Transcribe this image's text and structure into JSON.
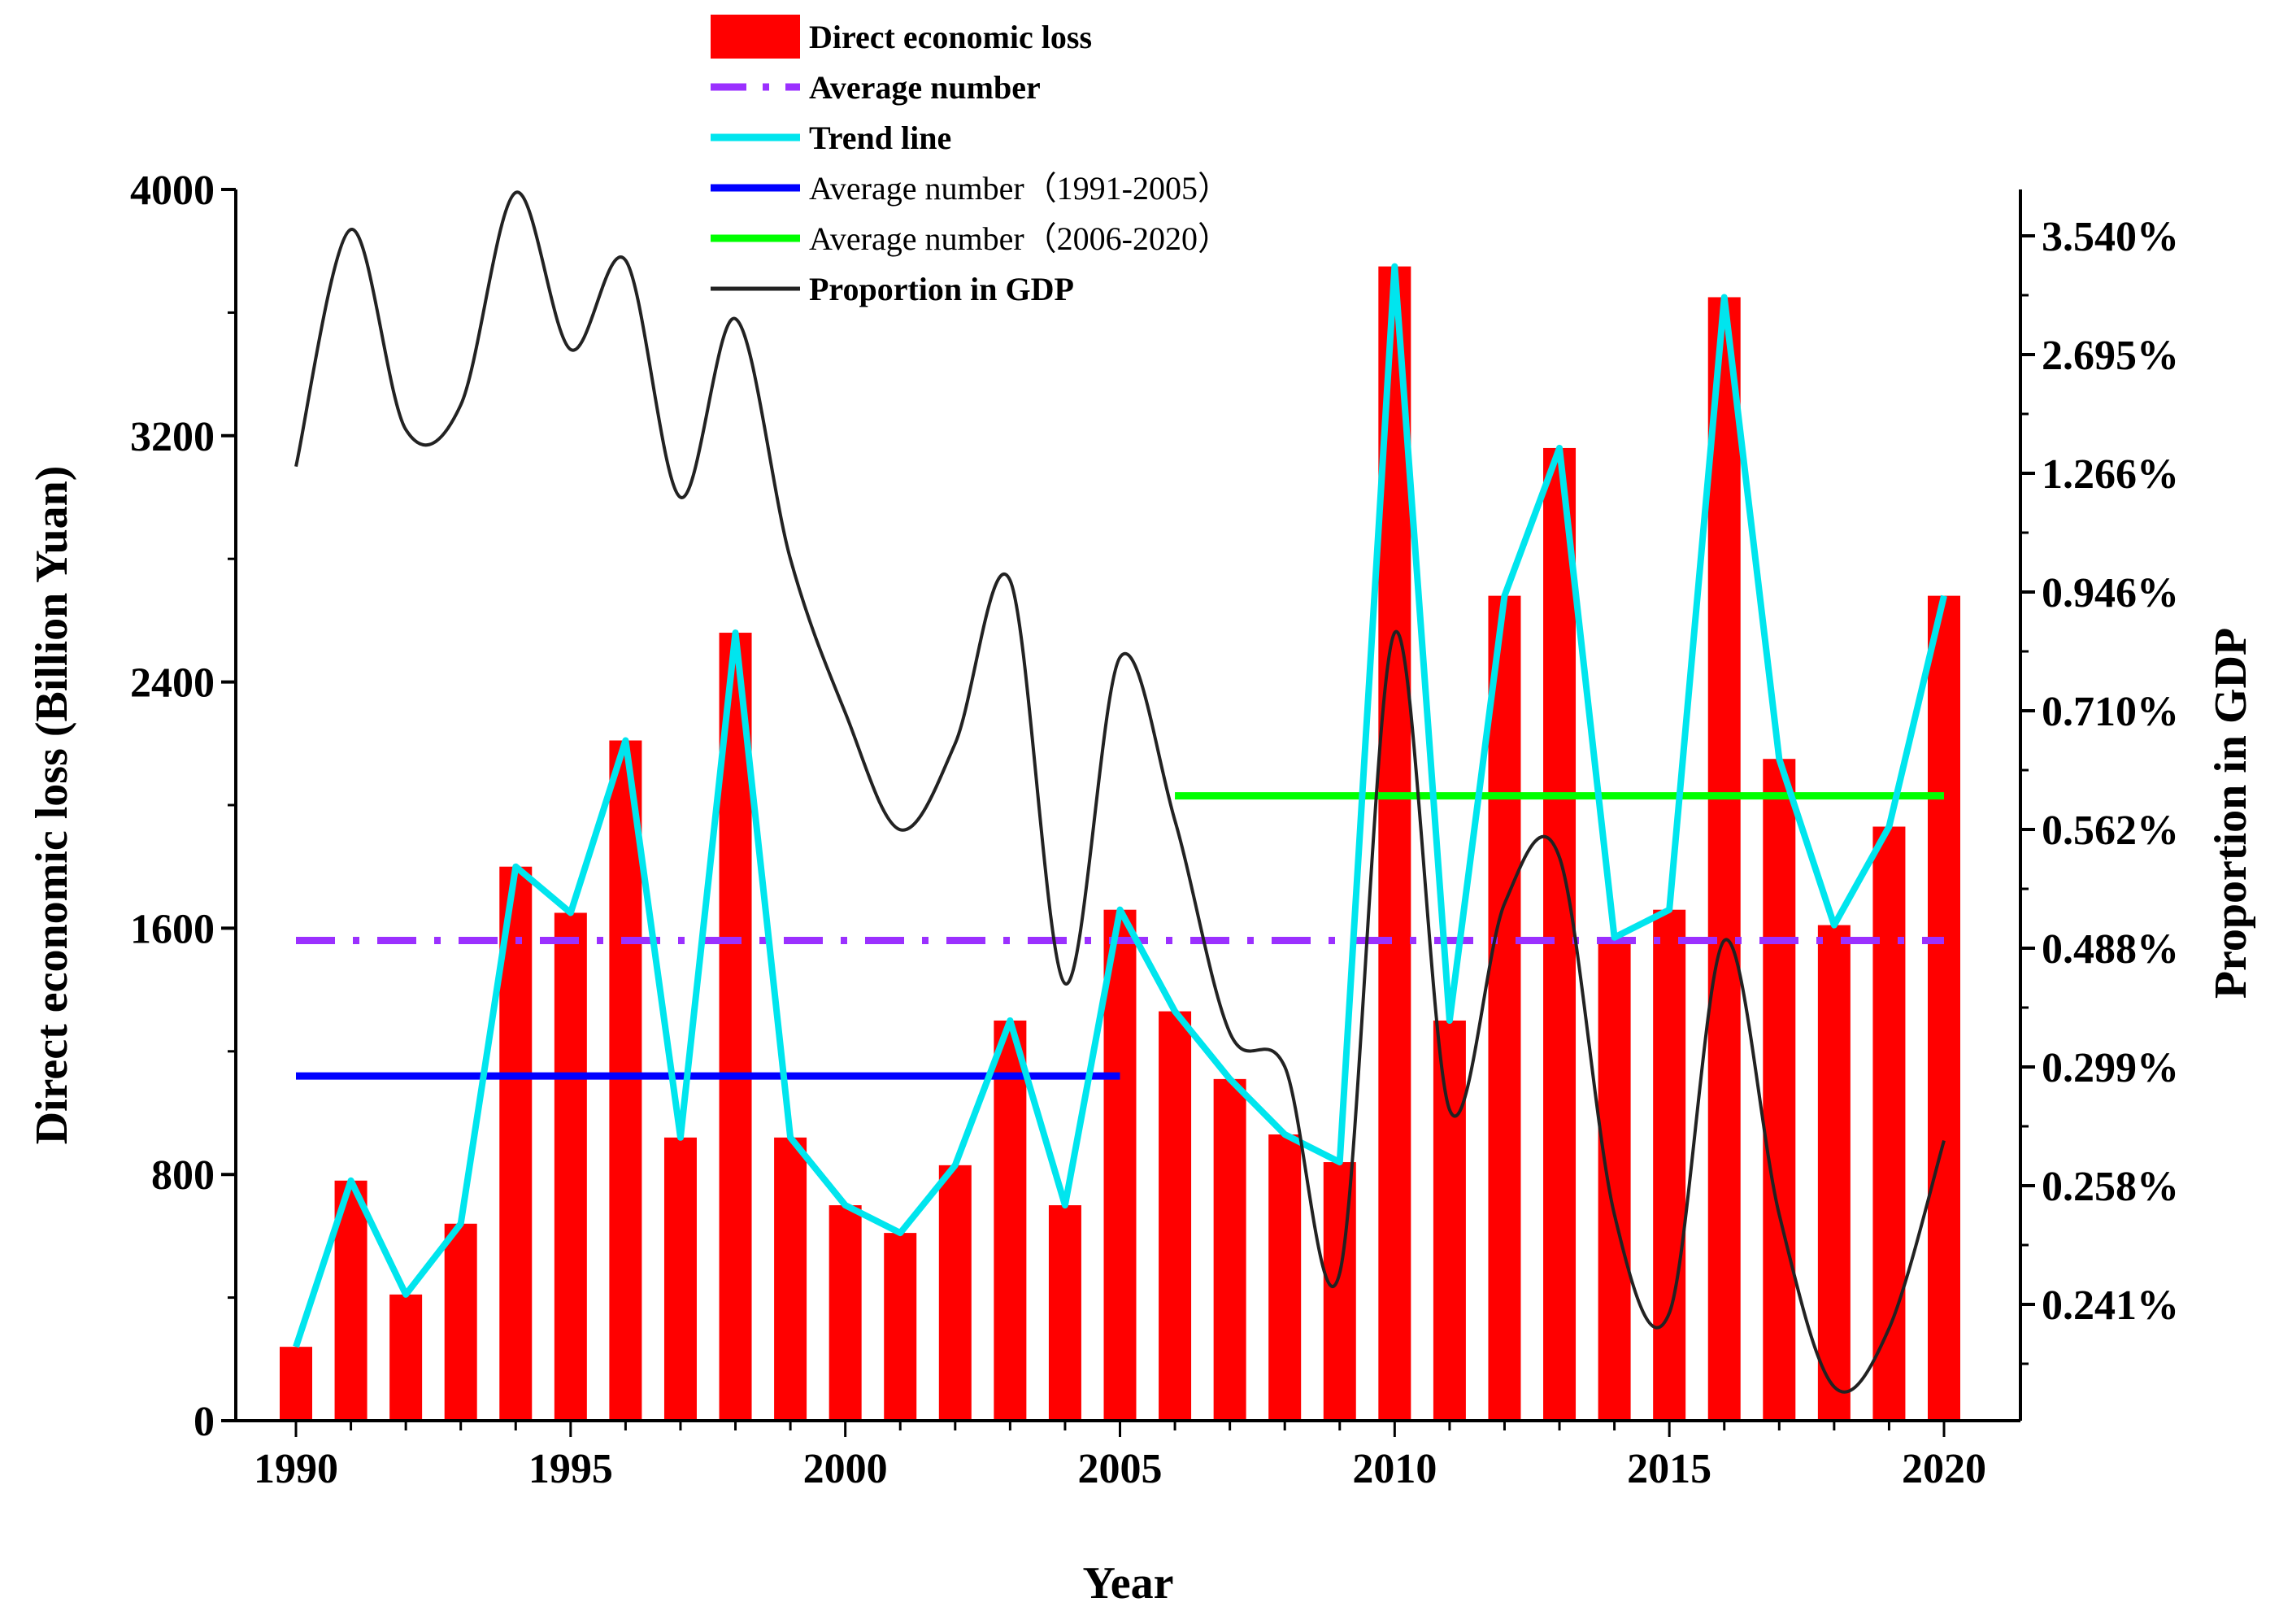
{
  "chart_data": {
    "type": "bar",
    "xlabel": "Year",
    "ylabel": "Direct economic loss (Billion Yuan)",
    "y2label": "Proportion in GDP",
    "xlim": [
      1990,
      2020
    ],
    "ylim": [
      0,
      4000
    ],
    "x_ticks": [
      "1990",
      "1995",
      "2000",
      "2005",
      "2010",
      "2015",
      "2020"
    ],
    "y_ticks": [
      "0",
      "800",
      "1600",
      "2400",
      "3200",
      "4000"
    ],
    "y2_ticks": [
      "0.241%",
      "0.258%",
      "0.299%",
      "0.488%",
      "0.562%",
      "0.710%",
      "0.946%",
      "1.266%",
      "2.695%",
      "3.540%"
    ],
    "grid": false,
    "legend_position": "top-center",
    "legend": [
      {
        "label": "Direct economic loss",
        "style": "bar",
        "color": "#ff0000"
      },
      {
        "label": "Average number",
        "style": "dash-dot",
        "color": "#9b30ff"
      },
      {
        "label": "Trend line",
        "style": "line",
        "color": "#00e5ee"
      },
      {
        "label": "Average number（1991-2005）",
        "style": "line",
        "color": "#0000ff"
      },
      {
        "label": "Average number（2006-2020）",
        "style": "line",
        "color": "#00ff00"
      },
      {
        "label": "Proportion in GDP",
        "style": "line",
        "color": "#222222"
      }
    ],
    "x": [
      1990,
      1991,
      1992,
      1993,
      1994,
      1995,
      1996,
      1997,
      1998,
      1999,
      2000,
      2001,
      2002,
      2003,
      2004,
      2005,
      2006,
      2007,
      2008,
      2009,
      2010,
      2011,
      2012,
      2013,
      2014,
      2015,
      2016,
      2017,
      2018,
      2019,
      2020
    ],
    "series": [
      {
        "name": "Direct economic loss",
        "color": "#ff0000",
        "values": [
          240,
          780,
          410,
          640,
          1800,
          1650,
          2210,
          920,
          2560,
          920,
          700,
          610,
          830,
          1300,
          700,
          1660,
          1330,
          1110,
          930,
          840,
          3750,
          1300,
          2680,
          3160,
          1570,
          1660,
          3650,
          2150,
          1610,
          1930,
          2680
        ]
      },
      {
        "name": "Trend line",
        "color": "#00e5ee",
        "values": [
          240,
          780,
          410,
          640,
          1800,
          1650,
          2210,
          920,
          2560,
          920,
          700,
          610,
          830,
          1300,
          700,
          1660,
          1330,
          1110,
          930,
          840,
          3750,
          1300,
          2680,
          3160,
          1570,
          1660,
          3650,
          2150,
          1610,
          1930,
          2680
        ]
      },
      {
        "name": "Proportion in GDP",
        "color": "#222222",
        "note_values_in_left_axis_units": true,
        "values": [
          3100,
          3870,
          3220,
          3300,
          3990,
          3480,
          3770,
          3000,
          3580,
          2800,
          2300,
          1920,
          2200,
          2730,
          1420,
          2480,
          1950,
          1260,
          1150,
          480,
          2560,
          1010,
          1680,
          1830,
          670,
          350,
          1560,
          670,
          110,
          300,
          910
        ]
      }
    ],
    "average_lines": [
      {
        "name": "Average number",
        "x": [
          1990,
          2020
        ],
        "value": 1560,
        "color": "#9b30ff"
      },
      {
        "name": "Average number（1991-2005）",
        "x": [
          1990,
          2005
        ],
        "value": 1120,
        "color": "#0000ff"
      },
      {
        "name": "Average number（2006-2020）",
        "x": [
          2006,
          2020
        ],
        "value": 2030,
        "color": "#00ff00"
      }
    ]
  }
}
